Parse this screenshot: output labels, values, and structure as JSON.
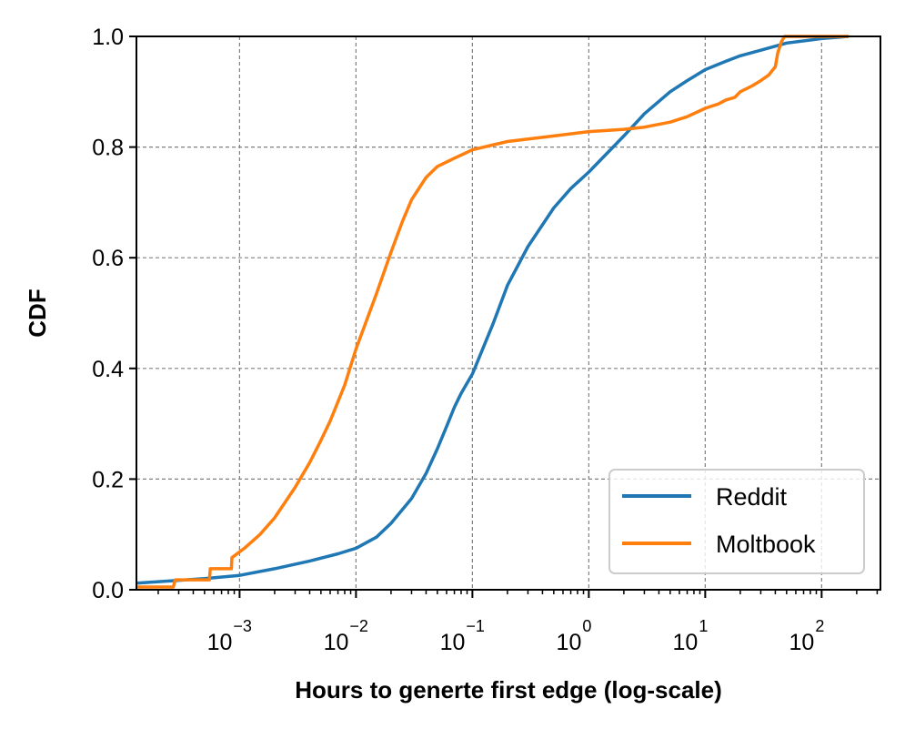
{
  "chart_data": {
    "type": "line",
    "xlabel": "Hours to generte first edge (log-scale)",
    "ylabel": "CDF",
    "xscale": "log",
    "xlim": [
      0.00013,
      320
    ],
    "ylim": [
      0.0,
      1.0
    ],
    "grid": true,
    "legend_position": "bottom-right",
    "x_ticks": [
      {
        "value": 0.001,
        "base": "10",
        "exp": "−3"
      },
      {
        "value": 0.01,
        "base": "10",
        "exp": "−2"
      },
      {
        "value": 0.1,
        "base": "10",
        "exp": "−1"
      },
      {
        "value": 1,
        "base": "10",
        "exp": "0"
      },
      {
        "value": 10,
        "base": "10",
        "exp": "1"
      },
      {
        "value": 100,
        "base": "10",
        "exp": "2"
      }
    ],
    "y_ticks": [
      {
        "value": 0.0,
        "label": "0.0"
      },
      {
        "value": 0.2,
        "label": "0.2"
      },
      {
        "value": 0.4,
        "label": "0.4"
      },
      {
        "value": 0.6,
        "label": "0.6"
      },
      {
        "value": 0.8,
        "label": "0.8"
      },
      {
        "value": 1.0,
        "label": "1.0"
      }
    ],
    "series": [
      {
        "name": "Reddit",
        "color": "#1f77b4",
        "x": [
          0.00013,
          0.0005,
          0.001,
          0.002,
          0.004,
          0.007,
          0.01,
          0.015,
          0.02,
          0.03,
          0.04,
          0.05,
          0.06,
          0.07,
          0.08,
          0.1,
          0.15,
          0.2,
          0.3,
          0.5,
          0.7,
          1,
          2,
          3,
          5,
          7,
          10,
          15,
          20,
          30,
          50,
          100,
          170
        ],
        "y": [
          0.012,
          0.02,
          0.026,
          0.038,
          0.052,
          0.065,
          0.075,
          0.095,
          0.12,
          0.165,
          0.21,
          0.255,
          0.295,
          0.33,
          0.355,
          0.39,
          0.48,
          0.55,
          0.62,
          0.69,
          0.725,
          0.755,
          0.82,
          0.86,
          0.9,
          0.92,
          0.94,
          0.955,
          0.965,
          0.975,
          0.988,
          0.996,
          1.0
        ]
      },
      {
        "name": "Moltbook",
        "color": "#ff7f0e",
        "x": [
          0.00013,
          0.00027,
          0.00028,
          0.00055,
          0.00056,
          0.00085,
          0.00086,
          0.0011,
          0.0015,
          0.002,
          0.003,
          0.004,
          0.005,
          0.006,
          0.008,
          0.01,
          0.015,
          0.02,
          0.025,
          0.03,
          0.04,
          0.05,
          0.07,
          0.1,
          0.2,
          0.5,
          1,
          2,
          3,
          5,
          7,
          10,
          13,
          15,
          18,
          20,
          25,
          30,
          35,
          40,
          42,
          45,
          48,
          50,
          100,
          170
        ],
        "y": [
          0.005,
          0.005,
          0.018,
          0.018,
          0.038,
          0.038,
          0.058,
          0.075,
          0.1,
          0.13,
          0.185,
          0.23,
          0.27,
          0.305,
          0.37,
          0.435,
          0.535,
          0.61,
          0.665,
          0.705,
          0.745,
          0.765,
          0.78,
          0.795,
          0.81,
          0.82,
          0.828,
          0.832,
          0.836,
          0.845,
          0.855,
          0.87,
          0.878,
          0.885,
          0.89,
          0.9,
          0.91,
          0.92,
          0.93,
          0.945,
          0.97,
          0.99,
          1.0,
          1.0,
          1.0,
          1.0
        ]
      }
    ]
  }
}
